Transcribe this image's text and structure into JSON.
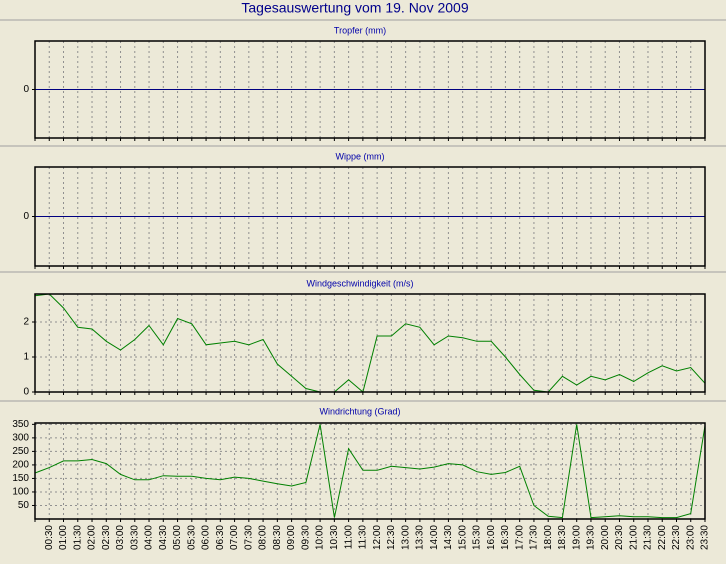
{
  "title": "Tagesauswertung vom 19. Nov 2009",
  "chart_data": [
    {
      "type": "line",
      "title": "Tropfer (mm)",
      "color": "#000080",
      "values": [
        0,
        0,
        0,
        0,
        0,
        0,
        0,
        0,
        0,
        0,
        0,
        0,
        0,
        0,
        0,
        0,
        0,
        0,
        0,
        0,
        0,
        0,
        0,
        0,
        0,
        0,
        0,
        0,
        0,
        0,
        0,
        0,
        0,
        0,
        0,
        0,
        0,
        0,
        0,
        0,
        0,
        0,
        0,
        0,
        0,
        0,
        0,
        0
      ],
      "ylim": [
        -1,
        1
      ],
      "yticks": [
        0
      ],
      "grid": true
    },
    {
      "type": "line",
      "title": "Wippe (mm)",
      "color": "#000080",
      "values": [
        0,
        0,
        0,
        0,
        0,
        0,
        0,
        0,
        0,
        0,
        0,
        0,
        0,
        0,
        0,
        0,
        0,
        0,
        0,
        0,
        0,
        0,
        0,
        0,
        0,
        0,
        0,
        0,
        0,
        0,
        0,
        0,
        0,
        0,
        0,
        0,
        0,
        0,
        0,
        0,
        0,
        0,
        0,
        0,
        0,
        0,
        0,
        0
      ],
      "ylim": [
        -1,
        1
      ],
      "yticks": [
        0
      ],
      "grid": true
    },
    {
      "type": "line",
      "title": "Windgeschwindigkeit (m/s)",
      "color": "#008000",
      "values": [
        2.75,
        2.8,
        2.4,
        1.85,
        1.8,
        1.45,
        1.2,
        1.5,
        1.9,
        1.35,
        2.1,
        1.95,
        1.35,
        1.4,
        1.45,
        1.35,
        1.5,
        0.8,
        0.45,
        0.1,
        0,
        0,
        0.35,
        0,
        1.6,
        1.6,
        1.95,
        1.85,
        1.35,
        1.6,
        1.55,
        1.45,
        1.45,
        1.0,
        0.5,
        0.05,
        0,
        0.45,
        0.2,
        0.45,
        0.35,
        0.5,
        0.3,
        0.55,
        0.75,
        0.6,
        0.7,
        0.25
      ],
      "ylim": [
        0,
        2.8
      ],
      "yticks": [
        0,
        1,
        2
      ],
      "grid": true
    },
    {
      "type": "line",
      "title": "Windrichtung (Grad)",
      "color": "#008000",
      "categories": [
        null,
        "00:30",
        "01:00",
        "01:30",
        "02:00",
        "02:30",
        "03:00",
        "03:30",
        "04:00",
        "04:30",
        "05:00",
        "05:30",
        "06:00",
        "06:30",
        "07:00",
        "07:30",
        "08:00",
        "08:30",
        "09:00",
        "09:30",
        "10:00",
        "10:30",
        "11:00",
        "11:30",
        "12:00",
        "12:30",
        "13:00",
        "13:30",
        "14:00",
        "14:30",
        "15:00",
        "15:30",
        "16:00",
        "16:30",
        "17:00",
        "17:30",
        "18:00",
        "18:30",
        "19:00",
        "19:30",
        "20:00",
        "20:30",
        "21:00",
        "21:30",
        "22:00",
        "22:30",
        "23:00",
        "23:30"
      ],
      "values": [
        170,
        190,
        215,
        215,
        220,
        205,
        165,
        145,
        145,
        160,
        158,
        158,
        150,
        145,
        155,
        150,
        140,
        130,
        122,
        135,
        350,
        5,
        260,
        180,
        180,
        195,
        190,
        185,
        192,
        205,
        200,
        175,
        165,
        172,
        195,
        50,
        10,
        5,
        350,
        5,
        8,
        12,
        8,
        8,
        5,
        5,
        20,
        345
      ],
      "ylim": [
        0,
        355
      ],
      "yticks": [
        50,
        100,
        150,
        200,
        250,
        300,
        350
      ],
      "grid": true
    }
  ]
}
